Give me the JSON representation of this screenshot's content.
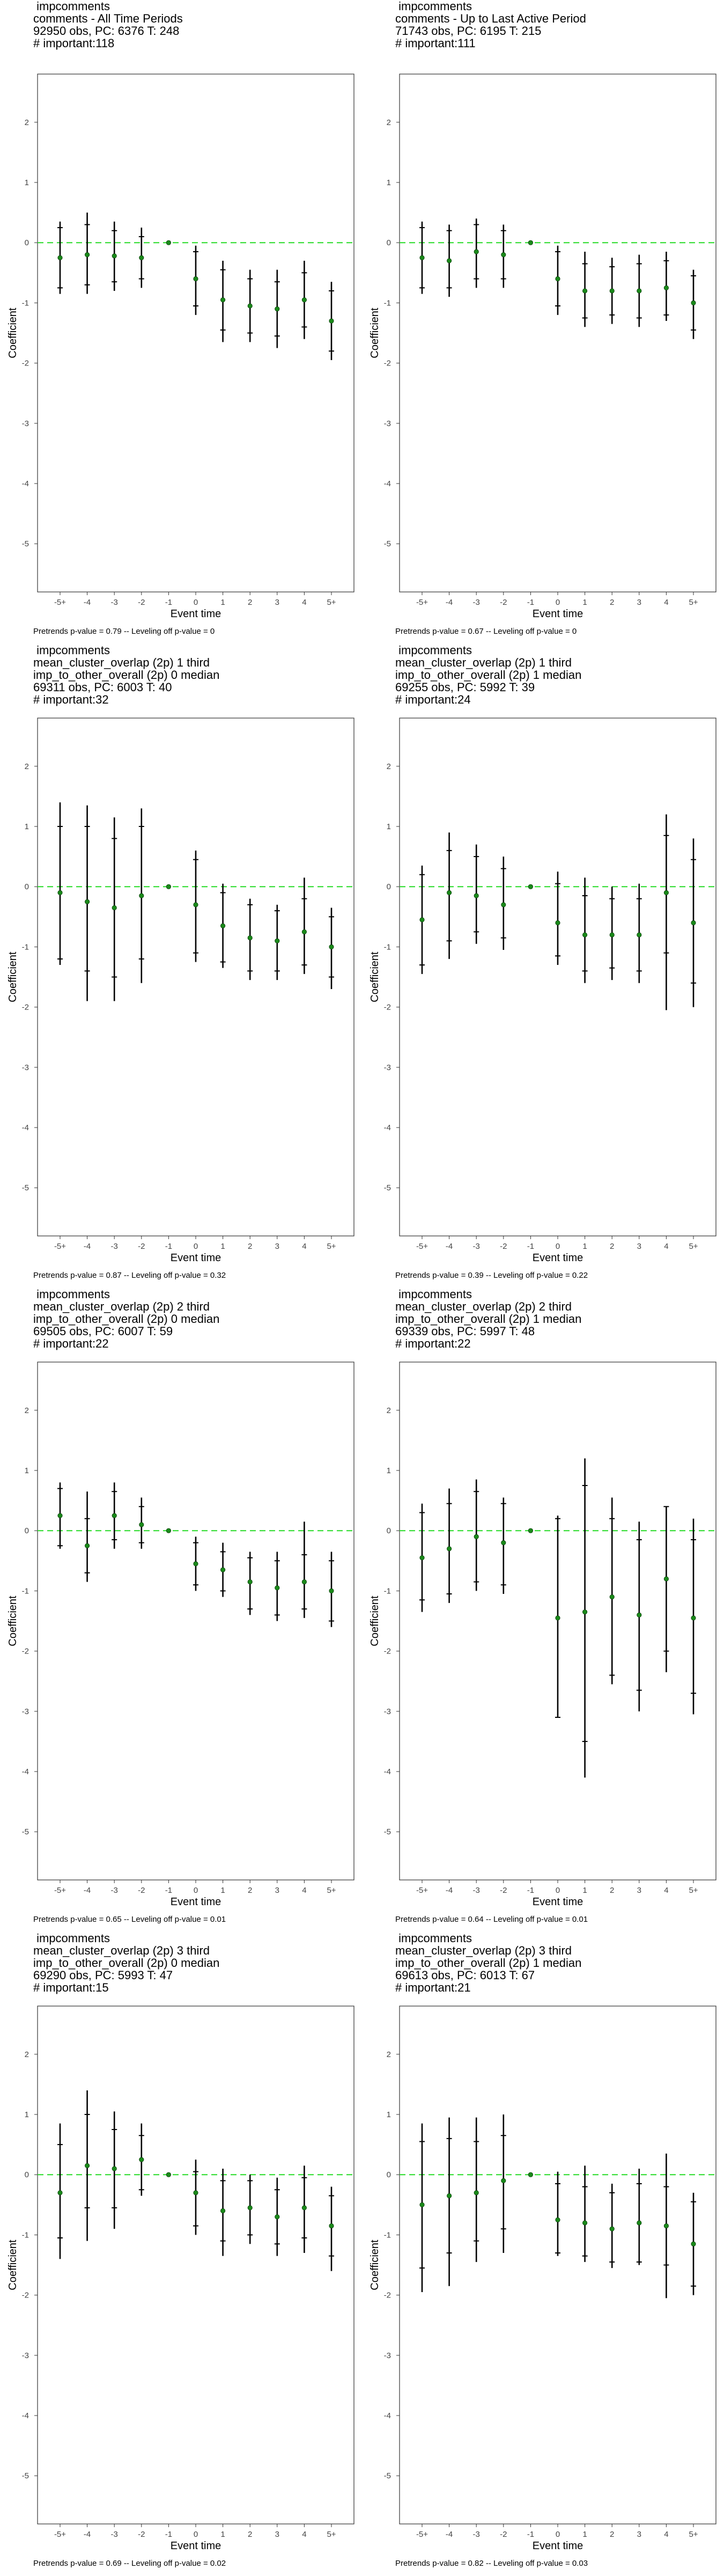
{
  "colors": {
    "point": "#1a8a1a",
    "zero_line": "#33dd33",
    "bar": "#000000",
    "frame": "#333333"
  },
  "chart_data": [
    {
      "type": "scatter",
      "title_lines": [
        " impcomments",
        "comments - All Time Periods",
        "92950 obs, PC: 6376 T: 248",
        "# important:118"
      ],
      "xlabel": "Event time",
      "ylabel": "Coefficient",
      "categories": [
        "-5+",
        "-4",
        "-3",
        "-2",
        "-1",
        "0",
        "1",
        "2",
        "3",
        "4",
        "5+"
      ],
      "ylim": [
        -5.8,
        2.8
      ],
      "yticks": [
        -5,
        -4,
        -3,
        -2,
        -1,
        0,
        1,
        2
      ],
      "reference_line": 0,
      "estimate": [
        -0.25,
        -0.2,
        -0.22,
        -0.25,
        0.0,
        -0.6,
        -0.95,
        -1.05,
        -1.1,
        -0.95,
        -1.3
      ],
      "inner_ci": [
        [
          -0.75,
          0.25
        ],
        [
          -0.7,
          0.3
        ],
        [
          -0.65,
          0.2
        ],
        [
          -0.6,
          0.1
        ],
        [
          0,
          0
        ],
        [
          -1.05,
          -0.15
        ],
        [
          -1.45,
          -0.45
        ],
        [
          -1.5,
          -0.6
        ],
        [
          -1.55,
          -0.65
        ],
        [
          -1.4,
          -0.5
        ],
        [
          -1.8,
          -0.8
        ]
      ],
      "outer_ci": [
        [
          -0.85,
          0.35
        ],
        [
          -0.85,
          0.5
        ],
        [
          -0.8,
          0.35
        ],
        [
          -0.75,
          0.25
        ],
        [
          0,
          0
        ],
        [
          -1.2,
          -0.05
        ],
        [
          -1.65,
          -0.3
        ],
        [
          -1.65,
          -0.45
        ],
        [
          -1.75,
          -0.45
        ],
        [
          -1.6,
          -0.3
        ],
        [
          -1.95,
          -0.65
        ]
      ],
      "footnote": "Pretrends p-value = 0.79 -- Leveling off p-value = 0"
    },
    {
      "type": "scatter",
      "title_lines": [
        " impcomments",
        "comments - Up to Last Active Period",
        "71743 obs, PC: 6195 T: 215",
        "# important:111"
      ],
      "xlabel": "Event time",
      "ylabel": "Coefficient",
      "categories": [
        "-5+",
        "-4",
        "-3",
        "-2",
        "-1",
        "0",
        "1",
        "2",
        "3",
        "4",
        "5+"
      ],
      "ylim": [
        -5.8,
        2.8
      ],
      "yticks": [
        -5,
        -4,
        -3,
        -2,
        -1,
        0,
        1,
        2
      ],
      "reference_line": 0,
      "estimate": [
        -0.25,
        -0.3,
        -0.15,
        -0.2,
        0.0,
        -0.6,
        -0.8,
        -0.8,
        -0.8,
        -0.75,
        -1.0
      ],
      "inner_ci": [
        [
          -0.75,
          0.25
        ],
        [
          -0.75,
          0.2
        ],
        [
          -0.6,
          0.3
        ],
        [
          -0.6,
          0.2
        ],
        [
          0,
          0
        ],
        [
          -1.05,
          -0.15
        ],
        [
          -1.25,
          -0.35
        ],
        [
          -1.2,
          -0.4
        ],
        [
          -1.25,
          -0.35
        ],
        [
          -1.2,
          -0.3
        ],
        [
          -1.45,
          -0.55
        ]
      ],
      "outer_ci": [
        [
          -0.85,
          0.35
        ],
        [
          -0.9,
          0.3
        ],
        [
          -0.75,
          0.4
        ],
        [
          -0.75,
          0.3
        ],
        [
          0,
          0
        ],
        [
          -1.2,
          -0.05
        ],
        [
          -1.4,
          -0.15
        ],
        [
          -1.35,
          -0.25
        ],
        [
          -1.4,
          -0.2
        ],
        [
          -1.3,
          -0.15
        ],
        [
          -1.6,
          -0.45
        ]
      ],
      "footnote": "Pretrends p-value = 0.67 -- Leveling off p-value = 0"
    },
    {
      "type": "scatter",
      "title_lines": [
        " impcomments",
        "mean_cluster_overlap (2p) 1 third",
        "imp_to_other_overall (2p) 0 median",
        "69311 obs, PC: 6003 T: 40",
        "# important:32"
      ],
      "xlabel": "Event time",
      "ylabel": "Coefficient",
      "categories": [
        "-5+",
        "-4",
        "-3",
        "-2",
        "-1",
        "0",
        "1",
        "2",
        "3",
        "4",
        "5+"
      ],
      "ylim": [
        -5.8,
        2.8
      ],
      "yticks": [
        -5,
        -4,
        -3,
        -2,
        -1,
        0,
        1,
        2
      ],
      "reference_line": 0,
      "estimate": [
        -0.1,
        -0.25,
        -0.35,
        -0.15,
        0.0,
        -0.3,
        -0.65,
        -0.85,
        -0.9,
        -0.75,
        -1.0
      ],
      "inner_ci": [
        [
          -1.2,
          1.0
        ],
        [
          -1.4,
          1.0
        ],
        [
          -1.5,
          0.8
        ],
        [
          -1.2,
          1.0
        ],
        [
          0,
          0
        ],
        [
          -1.1,
          0.45
        ],
        [
          -1.25,
          -0.1
        ],
        [
          -1.4,
          -0.3
        ],
        [
          -1.4,
          -0.4
        ],
        [
          -1.3,
          -0.2
        ],
        [
          -1.5,
          -0.5
        ]
      ],
      "outer_ci": [
        [
          -1.3,
          1.4
        ],
        [
          -1.9,
          1.35
        ],
        [
          -1.9,
          1.15
        ],
        [
          -1.6,
          1.3
        ],
        [
          0,
          0
        ],
        [
          -1.25,
          0.6
        ],
        [
          -1.35,
          0.05
        ],
        [
          -1.55,
          -0.2
        ],
        [
          -1.55,
          -0.3
        ],
        [
          -1.45,
          0.15
        ],
        [
          -1.7,
          -0.35
        ]
      ],
      "footnote": "Pretrends p-value = 0.87 -- Leveling off p-value = 0.32"
    },
    {
      "type": "scatter",
      "title_lines": [
        " impcomments",
        "mean_cluster_overlap (2p) 1 third",
        "imp_to_other_overall (2p) 1 median",
        "69255 obs, PC: 5992 T: 39",
        "# important:24"
      ],
      "xlabel": "Event time",
      "ylabel": "Coefficient",
      "categories": [
        "-5+",
        "-4",
        "-3",
        "-2",
        "-1",
        "0",
        "1",
        "2",
        "3",
        "4",
        "5+"
      ],
      "ylim": [
        -5.8,
        2.8
      ],
      "yticks": [
        -5,
        -4,
        -3,
        -2,
        -1,
        0,
        1,
        2
      ],
      "reference_line": 0,
      "estimate": [
        -0.55,
        -0.1,
        -0.15,
        -0.3,
        0.0,
        -0.6,
        -0.8,
        -0.8,
        -0.8,
        -0.1,
        -0.6
      ],
      "inner_ci": [
        [
          -1.3,
          0.2
        ],
        [
          -0.9,
          0.6
        ],
        [
          -0.75,
          0.5
        ],
        [
          -0.85,
          0.3
        ],
        [
          0,
          0
        ],
        [
          -1.15,
          0.05
        ],
        [
          -1.4,
          -0.15
        ],
        [
          -1.35,
          -0.2
        ],
        [
          -1.4,
          -0.2
        ],
        [
          -1.1,
          0.85
        ],
        [
          -1.6,
          0.45
        ]
      ],
      "outer_ci": [
        [
          -1.45,
          0.35
        ],
        [
          -1.2,
          0.9
        ],
        [
          -0.95,
          0.7
        ],
        [
          -1.05,
          0.5
        ],
        [
          0,
          0
        ],
        [
          -1.3,
          0.25
        ],
        [
          -1.6,
          0.15
        ],
        [
          -1.55,
          0.0
        ],
        [
          -1.6,
          0.05
        ],
        [
          -2.05,
          1.2
        ],
        [
          -2.0,
          0.8
        ]
      ],
      "footnote": "Pretrends p-value = 0.39 -- Leveling off p-value = 0.22"
    },
    {
      "type": "scatter",
      "title_lines": [
        " impcomments",
        "mean_cluster_overlap (2p) 2 third",
        "imp_to_other_overall (2p) 0 median",
        "69505 obs, PC: 6007 T: 59",
        "# important:22"
      ],
      "xlabel": "Event time",
      "ylabel": "Coefficient",
      "categories": [
        "-5+",
        "-4",
        "-3",
        "-2",
        "-1",
        "0",
        "1",
        "2",
        "3",
        "4",
        "5+"
      ],
      "ylim": [
        -5.8,
        2.8
      ],
      "yticks": [
        -5,
        -4,
        -3,
        -2,
        -1,
        0,
        1,
        2
      ],
      "reference_line": 0,
      "estimate": [
        0.25,
        -0.25,
        0.25,
        0.1,
        0.0,
        -0.55,
        -0.65,
        -0.85,
        -0.95,
        -0.85,
        -1.0
      ],
      "inner_ci": [
        [
          -0.25,
          0.7
        ],
        [
          -0.7,
          0.2
        ],
        [
          -0.15,
          0.65
        ],
        [
          -0.2,
          0.4
        ],
        [
          0,
          0
        ],
        [
          -0.9,
          -0.2
        ],
        [
          -1.0,
          -0.35
        ],
        [
          -1.3,
          -0.45
        ],
        [
          -1.4,
          -0.5
        ],
        [
          -1.3,
          -0.4
        ],
        [
          -1.5,
          -0.5
        ]
      ],
      "outer_ci": [
        [
          -0.3,
          0.8
        ],
        [
          -0.85,
          0.65
        ],
        [
          -0.3,
          0.8
        ],
        [
          -0.3,
          0.55
        ],
        [
          0,
          0
        ],
        [
          -1.0,
          -0.1
        ],
        [
          -1.1,
          -0.2
        ],
        [
          -1.4,
          -0.35
        ],
        [
          -1.5,
          -0.35
        ],
        [
          -1.45,
          0.15
        ],
        [
          -1.6,
          -0.35
        ]
      ],
      "footnote": "Pretrends p-value = 0.65 -- Leveling off p-value = 0.01"
    },
    {
      "type": "scatter",
      "title_lines": [
        " impcomments",
        "mean_cluster_overlap (2p) 2 third",
        "imp_to_other_overall (2p) 1 median",
        "69339 obs, PC: 5997 T: 48",
        "# important:22"
      ],
      "xlabel": "Event time",
      "ylabel": "Coefficient",
      "categories": [
        "-5+",
        "-4",
        "-3",
        "-2",
        "-1",
        "0",
        "1",
        "2",
        "3",
        "4",
        "5+"
      ],
      "ylim": [
        -5.8,
        2.8
      ],
      "yticks": [
        -5,
        -4,
        -3,
        -2,
        -1,
        0,
        1,
        2
      ],
      "reference_line": 0,
      "estimate": [
        -0.45,
        -0.3,
        -0.1,
        -0.2,
        0.0,
        -1.45,
        -1.35,
        -1.1,
        -1.4,
        -0.8,
        -1.45
      ],
      "inner_ci": [
        [
          -1.15,
          0.3
        ],
        [
          -1.05,
          0.45
        ],
        [
          -0.85,
          0.65
        ],
        [
          -0.9,
          0.45
        ],
        [
          0,
          0
        ],
        [
          -3.1,
          0.2
        ],
        [
          -3.5,
          0.75
        ],
        [
          -2.4,
          0.2
        ],
        [
          -2.65,
          -0.15
        ],
        [
          -2.0,
          0.4
        ],
        [
          -2.7,
          -0.15
        ]
      ],
      "outer_ci": [
        [
          -1.35,
          0.45
        ],
        [
          -1.2,
          0.7
        ],
        [
          -1.0,
          0.85
        ],
        [
          -1.05,
          0.55
        ],
        [
          0,
          0
        ],
        [
          -3.1,
          0.25
        ],
        [
          -4.1,
          1.2
        ],
        [
          -2.55,
          0.55
        ],
        [
          -3.0,
          0.15
        ],
        [
          -2.35,
          0.4
        ],
        [
          -3.05,
          0.2
        ]
      ],
      "footnote": "Pretrends p-value = 0.64 -- Leveling off p-value = 0.01"
    },
    {
      "type": "scatter",
      "title_lines": [
        " impcomments",
        "mean_cluster_overlap (2p) 3 third",
        "imp_to_other_overall (2p) 0 median",
        "69290 obs, PC: 5993 T: 47",
        "# important:15"
      ],
      "xlabel": "Event time",
      "ylabel": "Coefficient",
      "categories": [
        "-5+",
        "-4",
        "-3",
        "-2",
        "-1",
        "0",
        "1",
        "2",
        "3",
        "4",
        "5+"
      ],
      "ylim": [
        -5.8,
        2.8
      ],
      "yticks": [
        -5,
        -4,
        -3,
        -2,
        -1,
        0,
        1,
        2
      ],
      "reference_line": 0,
      "estimate": [
        -0.3,
        0.15,
        0.1,
        0.25,
        0.0,
        -0.3,
        -0.6,
        -0.55,
        -0.7,
        -0.55,
        -0.85
      ],
      "inner_ci": [
        [
          -1.05,
          0.5
        ],
        [
          -0.55,
          1.0
        ],
        [
          -0.55,
          0.75
        ],
        [
          -0.25,
          0.65
        ],
        [
          0,
          0
        ],
        [
          -0.85,
          0.05
        ],
        [
          -1.1,
          -0.1
        ],
        [
          -1.0,
          -0.1
        ],
        [
          -1.15,
          -0.25
        ],
        [
          -1.05,
          -0.05
        ],
        [
          -1.35,
          -0.35
        ]
      ],
      "outer_ci": [
        [
          -1.4,
          0.85
        ],
        [
          -1.1,
          1.4
        ],
        [
          -0.9,
          1.05
        ],
        [
          -0.35,
          0.85
        ],
        [
          0,
          0
        ],
        [
          -1.0,
          0.25
        ],
        [
          -1.35,
          0.1
        ],
        [
          -1.15,
          0.0
        ],
        [
          -1.35,
          -0.05
        ],
        [
          -1.3,
          0.15
        ],
        [
          -1.6,
          -0.2
        ]
      ],
      "footnote": "Pretrends p-value = 0.69 -- Leveling off p-value = 0.02"
    },
    {
      "type": "scatter",
      "title_lines": [
        " impcomments",
        "mean_cluster_overlap (2p) 3 third",
        "imp_to_other_overall (2p) 1 median",
        "69613 obs, PC: 6013 T: 67",
        "# important:21"
      ],
      "xlabel": "Event time",
      "ylabel": "Coefficient",
      "categories": [
        "-5+",
        "-4",
        "-3",
        "-2",
        "-1",
        "0",
        "1",
        "2",
        "3",
        "4",
        "5+"
      ],
      "ylim": [
        -5.8,
        2.8
      ],
      "yticks": [
        -5,
        -4,
        -3,
        -2,
        -1,
        0,
        1,
        2
      ],
      "reference_line": 0,
      "estimate": [
        -0.5,
        -0.35,
        -0.3,
        -0.1,
        0.0,
        -0.75,
        -0.8,
        -0.9,
        -0.8,
        -0.85,
        -1.15
      ],
      "inner_ci": [
        [
          -1.55,
          0.55
        ],
        [
          -1.3,
          0.6
        ],
        [
          -1.1,
          0.55
        ],
        [
          -0.9,
          0.65
        ],
        [
          0,
          0
        ],
        [
          -1.3,
          -0.15
        ],
        [
          -1.35,
          -0.2
        ],
        [
          -1.45,
          -0.3
        ],
        [
          -1.45,
          -0.15
        ],
        [
          -1.5,
          -0.2
        ],
        [
          -1.85,
          -0.45
        ]
      ],
      "outer_ci": [
        [
          -1.95,
          0.85
        ],
        [
          -1.85,
          0.95
        ],
        [
          -1.45,
          0.95
        ],
        [
          -1.3,
          1.0
        ],
        [
          0,
          0
        ],
        [
          -1.35,
          0.05
        ],
        [
          -1.45,
          0.15
        ],
        [
          -1.55,
          -0.15
        ],
        [
          -1.5,
          0.1
        ],
        [
          -2.05,
          0.35
        ],
        [
          -2.0,
          -0.3
        ]
      ],
      "footnote": "Pretrends p-value = 0.82 -- Leveling off p-value = 0.03"
    }
  ]
}
